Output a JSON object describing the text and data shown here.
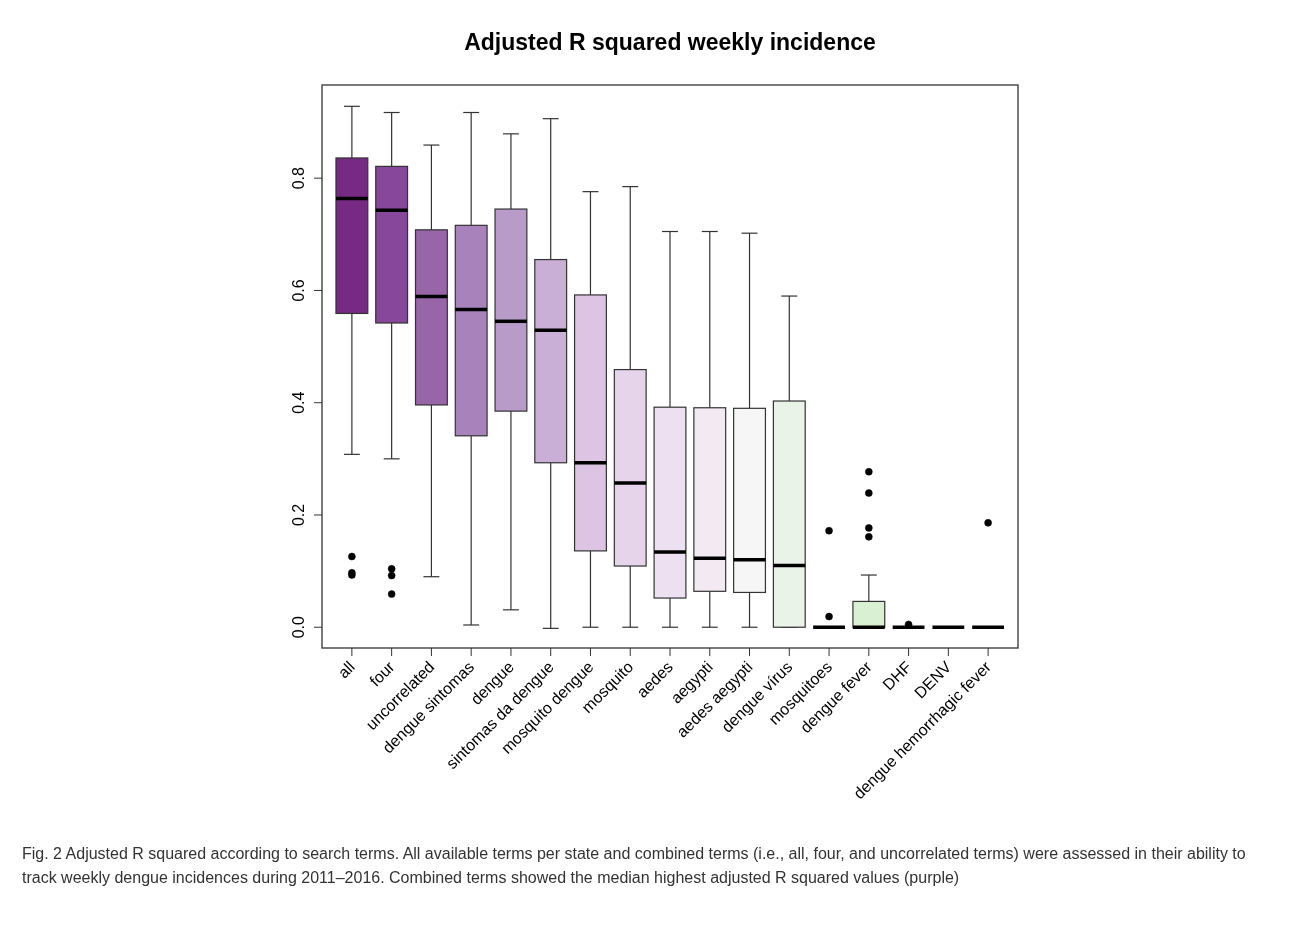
{
  "chart_data": {
    "type": "box",
    "title": "Adjusted R squared weekly incidence",
    "categories": [
      "all",
      "four",
      "uncorrelated",
      "dengue sintomas",
      "dengue",
      "sintomas da dengue",
      "mosquito dengue",
      "mosquito",
      "aedes",
      "aegypti",
      "aedes aegypti",
      "dengue vírus",
      "mosquitoes",
      "dengue fever",
      "DHF",
      "DENV",
      "dengue hemorrhagic fever"
    ],
    "colors": [
      "#762a83",
      "#87479a",
      "#9865a8",
      "#a882bb",
      "#b99bca",
      "#c9aed6",
      "#dcc4e2",
      "#e5d4ea",
      "#ede0f0",
      "#f2e9f3",
      "#f6f6f6",
      "#e9f3e7",
      null,
      "#d9f0d3",
      null,
      null,
      null
    ],
    "boxes": [
      {
        "low": 0.308,
        "q1": 0.559,
        "median": 0.764,
        "q3": 0.836,
        "high": 0.928,
        "outliers": [
          0.126,
          0.097,
          0.093
        ]
      },
      {
        "low": 0.3,
        "q1": 0.542,
        "median": 0.743,
        "q3": 0.821,
        "high": 0.917,
        "outliers": [
          0.104,
          0.092,
          0.059
        ]
      },
      {
        "low": 0.09,
        "q1": 0.396,
        "median": 0.589,
        "q3": 0.708,
        "high": 0.859
      },
      {
        "low": 0.004,
        "q1": 0.341,
        "median": 0.566,
        "q3": 0.716,
        "high": 0.917
      },
      {
        "low": 0.031,
        "q1": 0.385,
        "median": 0.545,
        "q3": 0.745,
        "high": 0.879
      },
      {
        "low": -0.002,
        "q1": 0.293,
        "median": 0.529,
        "q3": 0.655,
        "high": 0.906
      },
      {
        "low": 0,
        "q1": 0.136,
        "median": 0.293,
        "q3": 0.592,
        "high": 0.776
      },
      {
        "low": 0,
        "q1": 0.109,
        "median": 0.257,
        "q3": 0.459,
        "high": 0.785
      },
      {
        "low": 0,
        "q1": 0.052,
        "median": 0.134,
        "q3": 0.392,
        "high": 0.705
      },
      {
        "low": 0,
        "q1": 0.064,
        "median": 0.123,
        "q3": 0.391,
        "high": 0.705
      },
      {
        "low": 0,
        "q1": 0.062,
        "median": 0.12,
        "q3": 0.39,
        "high": 0.702
      },
      {
        "low": 0,
        "q1": 0,
        "median": 0.11,
        "q3": 0.403,
        "high": 0.59
      },
      {
        "low": 0,
        "q1": 0,
        "median": 0,
        "q3": 0,
        "high": 0,
        "outliers": [
          0.172,
          0.019
        ]
      },
      {
        "low": 0,
        "q1": 0,
        "median": 0,
        "q3": 0.046,
        "high": 0.093,
        "outliers": [
          0.277,
          0.239,
          0.177,
          0.161
        ]
      },
      {
        "low": 0,
        "q1": 0,
        "median": 0,
        "q3": 0,
        "high": 0,
        "outliers": [
          0.005
        ]
      },
      {
        "low": 0,
        "q1": 0,
        "median": 0,
        "q3": 0,
        "high": 0
      },
      {
        "low": 0,
        "q1": 0,
        "median": 0,
        "q3": 0,
        "high": 0,
        "outliers": [
          0.186
        ]
      }
    ],
    "ylim": [
      -0.037,
      0.966
    ],
    "yticks": [
      {
        "value": 0,
        "label": "0.0"
      },
      {
        "value": 0.2,
        "label": "0.2"
      },
      {
        "value": 0.4,
        "label": "0.4"
      },
      {
        "value": 0.6,
        "label": "0.6"
      },
      {
        "value": 0.8,
        "label": "0.8"
      }
    ],
    "grid": false,
    "annotations": [
      "Fig. 2 Adjusted R squared according to search terms. All available terms per state and combined terms (i.e., all, four, and uncorrelated terms) were assessed in their ability to track weekly dengue incidences during 2011–2016. Combined terms showed the median highest adjusted R squared values (purple)"
    ]
  }
}
